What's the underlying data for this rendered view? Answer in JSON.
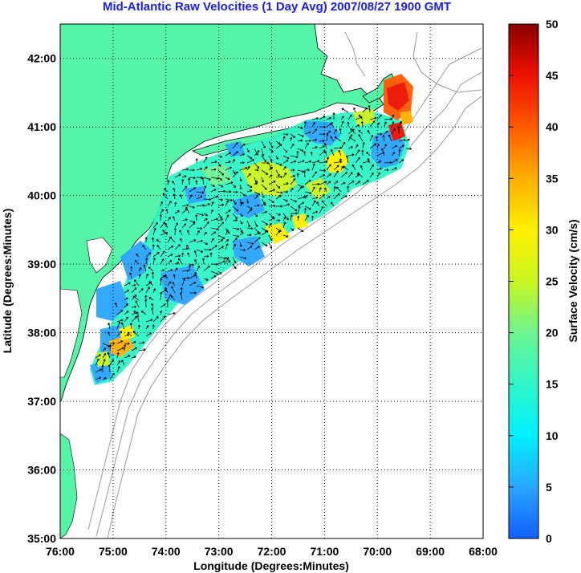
{
  "title": "Mid-Atlantic Raw Velocities (1 Day Avg) 2007/08/27 1900 GMT",
  "x_axis": {
    "label": "Longitude (Degrees:Minutes)",
    "ticks": [
      "76:00",
      "75:00",
      "74:00",
      "73:00",
      "72:00",
      "71:00",
      "70:00",
      "69:00",
      "68:00"
    ]
  },
  "y_axis": {
    "label": "Latitude (Degrees:Minutes)",
    "ticks": [
      "35:00",
      "36:00",
      "37:00",
      "38:00",
      "39:00",
      "40:00",
      "41:00",
      "42:00"
    ]
  },
  "colorbar": {
    "label": "Surface Velocity (cm/s)",
    "ticks": [
      "0",
      "5",
      "10",
      "15",
      "20",
      "25",
      "30",
      "35",
      "40",
      "45",
      "50"
    ],
    "range": [
      0,
      50
    ]
  },
  "colors": {
    "land": "#55f5a8",
    "title": "#1a1aff",
    "bathymetry": "#9a9a9a",
    "grid": "#000000"
  },
  "map": {
    "lon_range": [
      -76,
      -68
    ],
    "lat_range": [
      35,
      42.5
    ],
    "grid": "dotted"
  }
}
